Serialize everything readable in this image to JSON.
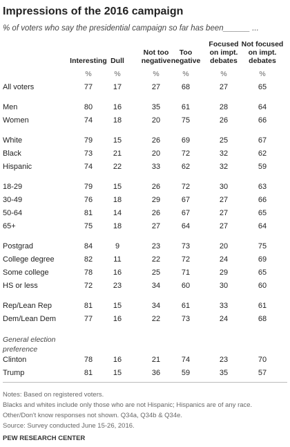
{
  "header": {
    "title": "Impressions of the 2016 campaign",
    "subtitle": "% of voters who say the presidential campaign so far has been______ ..."
  },
  "table": {
    "columns": [
      [
        "Interesting"
      ],
      [
        "Dull"
      ],
      [
        "Not too",
        "negative"
      ],
      [
        "Too",
        "negative"
      ],
      [
        "Focused",
        "on impt.",
        "debates"
      ],
      [
        "Not focused",
        "on impt.",
        "debates"
      ]
    ],
    "units": [
      "%",
      "%",
      "%",
      "%",
      "%",
      "%"
    ],
    "groups": [
      {
        "rows": [
          {
            "label": "All voters",
            "values": [
              77,
              17,
              27,
              68,
              27,
              65
            ]
          }
        ]
      },
      {
        "rows": [
          {
            "label": "Men",
            "values": [
              80,
              16,
              35,
              61,
              28,
              64
            ]
          },
          {
            "label": "Women",
            "values": [
              74,
              18,
              20,
              75,
              26,
              66
            ]
          }
        ]
      },
      {
        "rows": [
          {
            "label": "White",
            "values": [
              79,
              15,
              26,
              69,
              25,
              67
            ]
          },
          {
            "label": "Black",
            "values": [
              73,
              21,
              20,
              72,
              32,
              62
            ]
          },
          {
            "label": "Hispanic",
            "values": [
              74,
              22,
              33,
              62,
              32,
              59
            ]
          }
        ]
      },
      {
        "rows": [
          {
            "label": "18-29",
            "values": [
              79,
              15,
              26,
              72,
              30,
              63
            ]
          },
          {
            "label": "30-49",
            "values": [
              76,
              18,
              29,
              67,
              27,
              66
            ]
          },
          {
            "label": "50-64",
            "values": [
              81,
              14,
              26,
              67,
              27,
              65
            ]
          },
          {
            "label": "65+",
            "values": [
              75,
              18,
              27,
              64,
              27,
              64
            ]
          }
        ]
      },
      {
        "rows": [
          {
            "label": "Postgrad",
            "values": [
              84,
              9,
              23,
              73,
              20,
              75
            ]
          },
          {
            "label": "College degree",
            "values": [
              82,
              11,
              22,
              72,
              24,
              69
            ]
          },
          {
            "label": "Some college",
            "values": [
              78,
              16,
              25,
              71,
              29,
              65
            ]
          },
          {
            "label": "HS or less",
            "values": [
              72,
              23,
              34,
              60,
              30,
              60
            ]
          }
        ]
      },
      {
        "rows": [
          {
            "label": "Rep/Lean Rep",
            "values": [
              81,
              15,
              34,
              61,
              33,
              61
            ]
          },
          {
            "label": "Dem/Lean Dem",
            "values": [
              77,
              16,
              22,
              73,
              24,
              68
            ]
          }
        ]
      },
      {
        "label": "General election preference",
        "rows": [
          {
            "label": "Clinton",
            "values": [
              78,
              16,
              21,
              74,
              23,
              70
            ]
          },
          {
            "label": "Trump",
            "values": [
              81,
              15,
              36,
              59,
              35,
              57
            ]
          }
        ]
      }
    ]
  },
  "notes": [
    "Notes: Based on registered voters.",
    "Blacks and whites include only those who are not Hispanic; Hispanics are of any race.",
    "Other/Don't know responses not shown. Q34a, Q34b & Q34e.",
    "Source: Survey conducted June 15-26, 2016."
  ],
  "footer": "PEW RESEARCH CENTER"
}
